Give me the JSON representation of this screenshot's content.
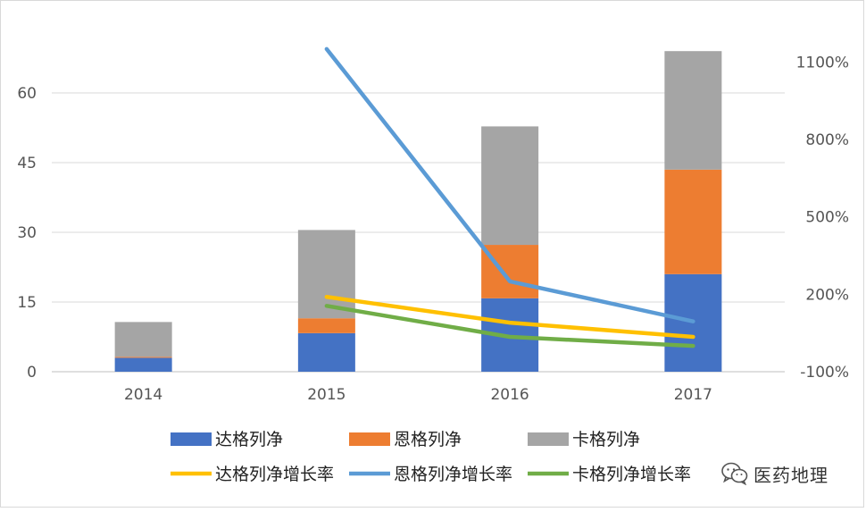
{
  "chart_data": {
    "type": "bar+line",
    "categories": [
      "2014",
      "2015",
      "2016",
      "2017"
    ],
    "bar_series": [
      {
        "name": "达格列净",
        "color": "#4472c4",
        "values": [
          3,
          8.3,
          15.8,
          21
        ]
      },
      {
        "name": "恩格列净",
        "color": "#ed7d31",
        "values": [
          0.2,
          3.2,
          11.5,
          22.5
        ]
      },
      {
        "name": "卡格列净",
        "color": "#a5a5a5",
        "values": [
          7.5,
          19,
          25.5,
          25.5
        ]
      }
    ],
    "line_series": [
      {
        "name": "达格列净增长率",
        "color": "#ffc000",
        "values": [
          null,
          190,
          90,
          35
        ]
      },
      {
        "name": "恩格列净增长率",
        "color": "#5b9bd5",
        "values": [
          null,
          1150,
          250,
          95
        ]
      },
      {
        "name": "卡格列净增长率",
        "color": "#70ad47",
        "values": [
          null,
          155,
          35,
          0
        ]
      }
    ],
    "left_axis": {
      "ylim": [
        0,
        75
      ],
      "ticks": [
        "0",
        "15",
        "30",
        "45",
        "60"
      ],
      "tick_values": [
        0,
        15,
        30,
        45,
        60
      ]
    },
    "right_axis": {
      "ylim": [
        -100,
        1250
      ],
      "ticks": [
        "-100%",
        "200%",
        "500%",
        "800%",
        "1100%"
      ],
      "tick_values": [
        -100,
        200,
        500,
        800,
        1100
      ]
    },
    "grid": true,
    "legend_position": "bottom"
  },
  "watermark": {
    "text": "医药地理",
    "icon": "wechat-icon"
  }
}
